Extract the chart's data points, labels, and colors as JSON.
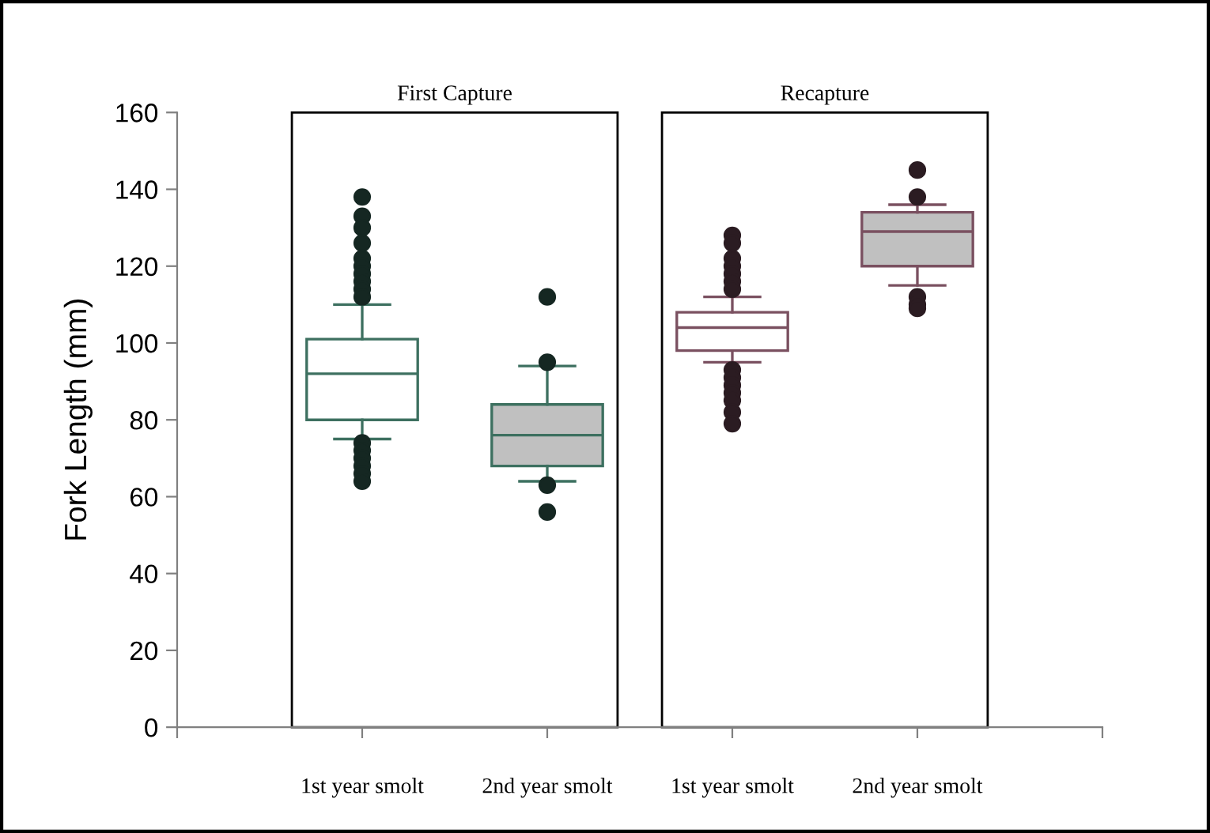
{
  "chart_data": {
    "type": "box",
    "categories": [
      "1st year smolt",
      "2nd year smolt",
      "1st year smolt",
      "2nd year smolt"
    ],
    "ylabel": "Fork Length (mm)",
    "ylim": [
      0,
      160
    ],
    "yticks": [
      0,
      20,
      40,
      60,
      80,
      100,
      120,
      140,
      160
    ],
    "grid": false,
    "annotations": [
      "First Capture",
      "Recapture"
    ],
    "series": [
      {
        "color": "#3d7060",
        "colors": [
          "#ffffff",
          "#c0c0c0",
          null,
          null
        ],
        "boxes": [
          {
            "low": 75,
            "q1": 80,
            "median": 92,
            "q3": 101,
            "high": 110,
            "outliers": [
              138,
              133,
              130,
              126,
              122,
              120,
              118,
              116,
              114,
              112,
              74,
              72,
              70,
              68,
              66,
              64
            ]
          },
          {
            "low": 64,
            "q1": 68,
            "median": 76,
            "q3": 84,
            "high": 94,
            "outliers": [
              112,
              95,
              63,
              56
            ]
          },
          null,
          null
        ]
      },
      {
        "color": "#7a5060",
        "colors": [
          null,
          null,
          "#ffffff",
          "#c0c0c0"
        ],
        "boxes": [
          null,
          null,
          {
            "low": 95,
            "q1": 98,
            "median": 104,
            "q3": 108,
            "high": 112,
            "outliers": [
              128,
              126,
              122,
              120,
              118,
              116,
              114,
              93,
              91,
              89,
              87,
              85,
              82,
              79
            ]
          },
          {
            "low": 115,
            "q1": 120,
            "median": 129,
            "q3": 134,
            "high": 136,
            "outliers": [
              145,
              138,
              112,
              110,
              109
            ]
          }
        ]
      }
    ]
  }
}
